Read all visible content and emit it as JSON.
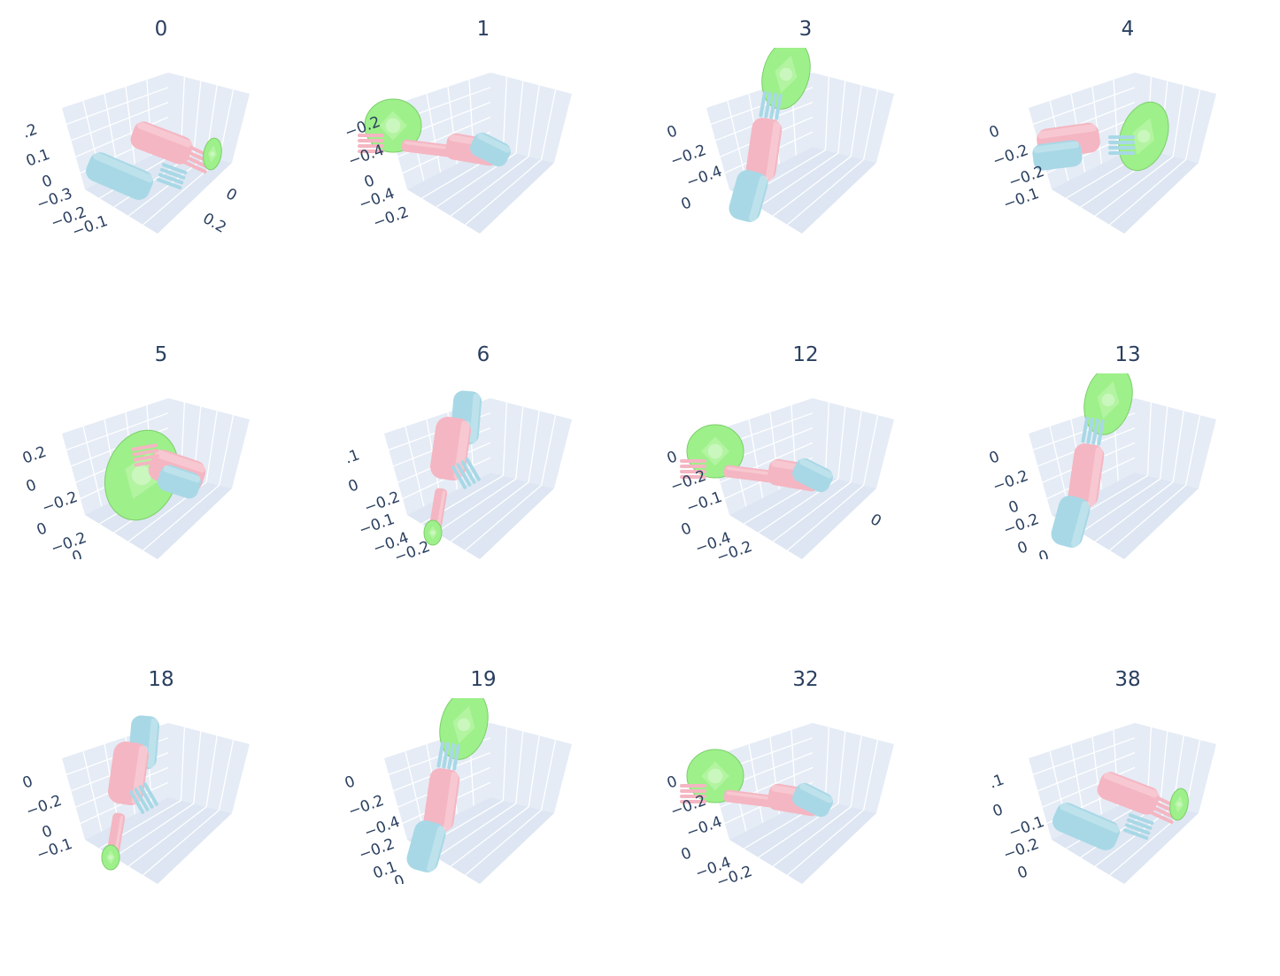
{
  "chart_data": {
    "type": "3d-mesh-grid",
    "colors": {
      "arm": "#f4b6c2",
      "object": "#a8d8e6",
      "disc": "#9ef08a",
      "grid_bg": "#e5ecf6",
      "grid_line": "#ffffff",
      "text": "#2a3f5f"
    },
    "panels": [
      {
        "title": "0",
        "pose": "arm-right",
        "ticks": [
          ".2",
          "0.1",
          "0",
          "−0.3",
          "−0.2",
          "−0.1",
          "0",
          "0.2"
        ]
      },
      {
        "title": "1",
        "pose": "disc-left",
        "ticks": [
          "−0.2",
          "−0.4",
          "0",
          "−0.4",
          "−0.2"
        ]
      },
      {
        "title": "3",
        "pose": "vertical",
        "ticks": [
          "0",
          "−0.2",
          "−0.4",
          "0"
        ]
      },
      {
        "title": "4",
        "pose": "disc-right",
        "ticks": [
          "0",
          "−0.2",
          "−0.2",
          "−0.1"
        ]
      },
      {
        "title": "5",
        "pose": "disc-center",
        "ticks": [
          "0.2",
          "0",
          "−0.2",
          "0",
          "−0.2",
          "0"
        ]
      },
      {
        "title": "6",
        "pose": "down",
        "ticks": [
          ".1",
          "0",
          "−0.2",
          "−0.1",
          "−0.4",
          "−0.2"
        ]
      },
      {
        "title": "12",
        "pose": "disc-left",
        "ticks": [
          "0",
          "−0.2",
          "−0.1",
          "0",
          "−0.4",
          "−0.2",
          "0"
        ]
      },
      {
        "title": "13",
        "pose": "vertical",
        "ticks": [
          "0",
          "−0.2",
          "0",
          "−0.2",
          "0",
          "0"
        ]
      },
      {
        "title": "18",
        "pose": "down",
        "ticks": [
          "0",
          "−0.2",
          "0",
          "−0.1"
        ]
      },
      {
        "title": "19",
        "pose": "vertical",
        "ticks": [
          "0",
          "−0.2",
          "−0.4",
          "−0.2",
          "0.1",
          "0"
        ]
      },
      {
        "title": "32",
        "pose": "disc-left",
        "ticks": [
          "0",
          "−0.2",
          "−0.4",
          "0",
          "−0.4",
          "−0.2"
        ]
      },
      {
        "title": "38",
        "pose": "arm-right",
        "ticks": [
          ".1",
          "0",
          "−0.1",
          "−0.2",
          "0"
        ]
      }
    ]
  }
}
